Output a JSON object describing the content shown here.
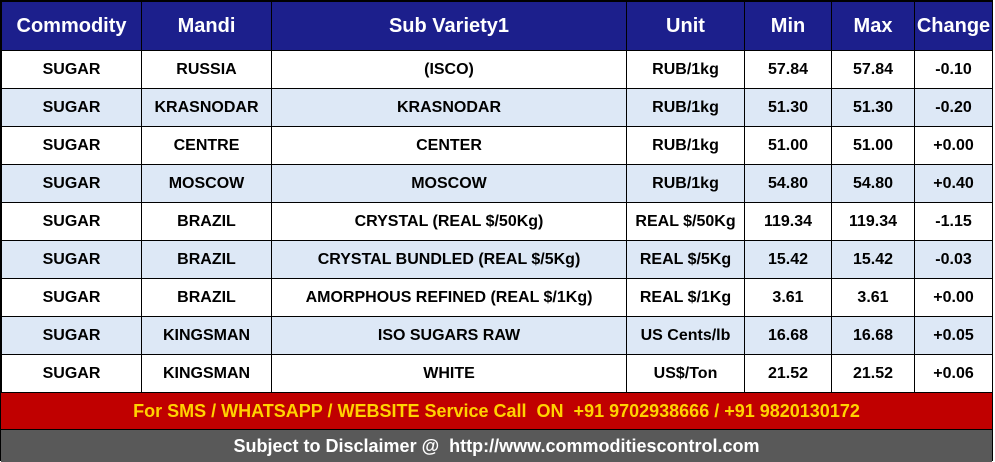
{
  "table": {
    "header": [
      "Commodity",
      "Mandi",
      "Sub Variety1",
      "Unit",
      "Min",
      "Max",
      "Change"
    ],
    "rows": [
      [
        "SUGAR",
        "RUSSIA",
        "(ISCO)",
        "RUB/1kg",
        "57.84",
        "57.84",
        "-0.10"
      ],
      [
        "SUGAR",
        "KRASNODAR",
        "KRASNODAR",
        "RUB/1kg",
        "51.30",
        "51.30",
        "-0.20"
      ],
      [
        "SUGAR",
        "CENTRE",
        "CENTER",
        "RUB/1kg",
        "51.00",
        "51.00",
        "+0.00"
      ],
      [
        "SUGAR",
        "MOSCOW",
        "MOSCOW",
        "RUB/1kg",
        "54.80",
        "54.80",
        "+0.40"
      ],
      [
        "SUGAR",
        "BRAZIL",
        "CRYSTAL (REAL $/50Kg)",
        "REAL $/50Kg",
        "119.34",
        "119.34",
        "-1.15"
      ],
      [
        "SUGAR",
        "BRAZIL",
        "CRYSTAL BUNDLED (REAL $/5Kg)",
        "REAL $/5Kg",
        "15.42",
        "15.42",
        "-0.03"
      ],
      [
        "SUGAR",
        "BRAZIL",
        "AMORPHOUS REFINED (REAL $/1Kg)",
        "REAL $/1Kg",
        "3.61",
        "3.61",
        "+0.00"
      ],
      [
        "SUGAR",
        "KINGSMAN",
        "ISO SUGARS RAW",
        "US Cents/lb",
        "16.68",
        "16.68",
        "+0.05"
      ],
      [
        "SUGAR",
        "KINGSMAN",
        "WHITE",
        "US$/Ton",
        "21.52",
        "21.52",
        "+0.06"
      ]
    ]
  },
  "footer": {
    "contact": "For SMS / WHATSAPP / WEBSITE Service Call  ON  +91 9702938666 / +91 9820130172",
    "disclaimer": "Subject to Disclaimer @  http://www.commoditiescontrol.com"
  }
}
